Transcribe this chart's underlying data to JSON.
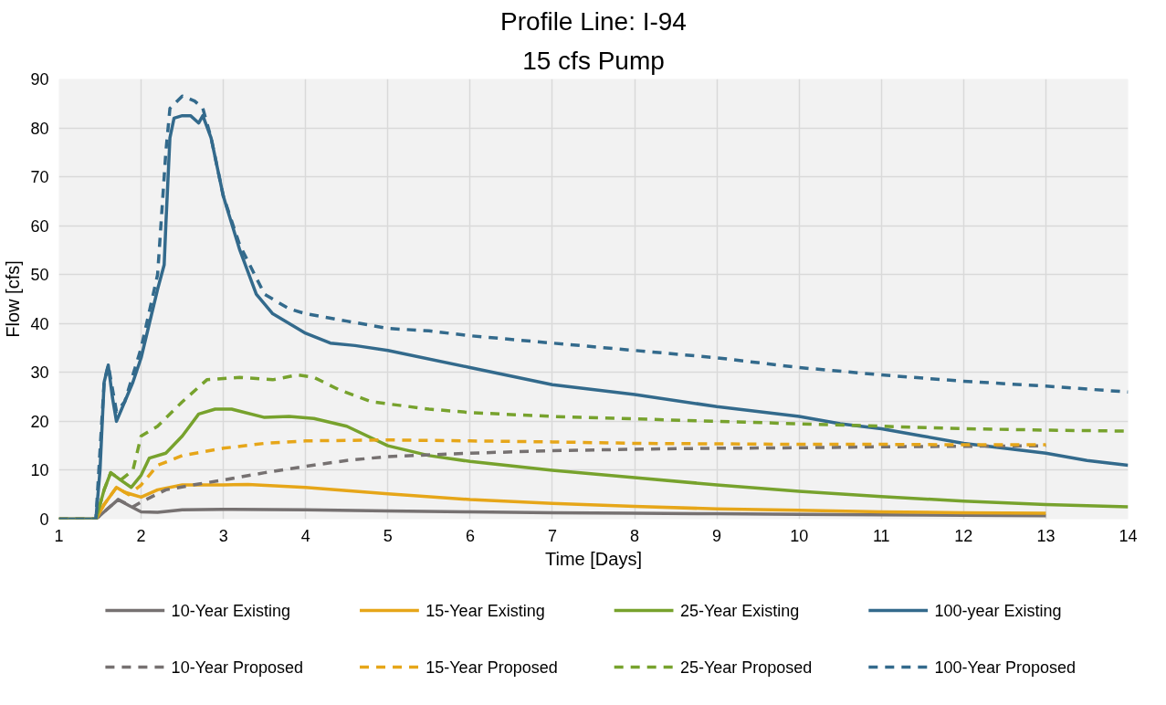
{
  "chart_data": {
    "type": "line",
    "title": "Profile Line: I-94",
    "subtitle": "15 cfs Pump",
    "xlabel": "Time [Days]",
    "ylabel": "Flow [cfs]",
    "xlim": [
      1,
      14
    ],
    "xticks": [
      1,
      2,
      3,
      4,
      5,
      6,
      7,
      8,
      9,
      10,
      11,
      12,
      13,
      14
    ],
    "ylim": [
      0,
      90
    ],
    "yticks": [
      0,
      10,
      20,
      30,
      40,
      50,
      60,
      70,
      80,
      90
    ],
    "grid": true,
    "legend": "bottom",
    "marker": "none",
    "series": [
      {
        "name": "10-Year Existing",
        "color": "#767171",
        "line_style": "solid",
        "x": [
          1,
          1.45,
          1.55,
          1.72,
          1.85,
          2,
          2.2,
          2.5,
          3,
          4,
          5,
          6,
          7,
          8,
          9,
          10,
          11,
          12,
          13
        ],
        "values": [
          0,
          0,
          1.5,
          4,
          2.8,
          1.5,
          1.4,
          1.9,
          2,
          1.9,
          1.7,
          1.5,
          1.3,
          1.2,
          1.1,
          1,
          0.9,
          0.8,
          0.7
        ]
      },
      {
        "name": "15-Year Existing",
        "color": "#e6a619",
        "line_style": "solid",
        "x": [
          1,
          1.45,
          1.55,
          1.7,
          1.8,
          1.9,
          2,
          2.2,
          2.5,
          3,
          3.3,
          4,
          5,
          6,
          7,
          8,
          9,
          10,
          11,
          12,
          13
        ],
        "values": [
          0,
          0,
          3,
          6.5,
          5.5,
          5,
          4.5,
          6,
          7,
          7,
          7.1,
          6.5,
          5.2,
          4,
          3.2,
          2.6,
          2.1,
          1.8,
          1.5,
          1.3,
          1.2
        ]
      },
      {
        "name": "25-Year Existing",
        "color": "#77a22d",
        "line_style": "solid",
        "x": [
          1,
          1.45,
          1.55,
          1.63,
          1.75,
          1.88,
          2,
          2.1,
          2.3,
          2.5,
          2.7,
          2.9,
          3.1,
          3.5,
          3.8,
          4.1,
          4.5,
          5,
          5.5,
          6,
          7,
          8,
          9,
          10,
          11,
          12,
          13,
          14
        ],
        "values": [
          0,
          0,
          6,
          9.5,
          8,
          6.5,
          9,
          12.5,
          13.5,
          17,
          21.5,
          22.5,
          22.5,
          20.8,
          21,
          20.6,
          19,
          15,
          13,
          11.8,
          10,
          8.5,
          7,
          5.7,
          4.6,
          3.7,
          3,
          2.5
        ]
      },
      {
        "name": "100-year Existing",
        "color": "#336a8c",
        "line_style": "solid",
        "x": [
          1,
          1.45,
          1.5,
          1.55,
          1.6,
          1.65,
          1.7,
          1.8,
          1.9,
          2,
          2.1,
          2.2,
          2.28,
          2.3,
          2.35,
          2.4,
          2.5,
          2.6,
          2.7,
          2.75,
          2.85,
          3,
          3.2,
          3.4,
          3.6,
          3.8,
          4,
          4.3,
          4.6,
          5,
          6,
          7,
          8,
          9,
          10,
          10.5,
          11,
          11.5,
          12,
          13,
          13.5,
          14
        ],
        "values": [
          0,
          0,
          10,
          28,
          31.5,
          25,
          20,
          24,
          28,
          33,
          40,
          47,
          52,
          60,
          78,
          82,
          82.5,
          82.5,
          81,
          82.5,
          78,
          66,
          55,
          46,
          42,
          40,
          38,
          36,
          35.5,
          34.5,
          31,
          27.5,
          25.5,
          23,
          21,
          19.5,
          18.5,
          17,
          15.5,
          13.5,
          12,
          11
        ]
      },
      {
        "name": "10-Year Proposed",
        "color": "#767171",
        "line_style": "dashed",
        "x": [
          1,
          1.45,
          1.55,
          1.72,
          1.9,
          2,
          2.3,
          2.7,
          3,
          3.5,
          4,
          4.5,
          5,
          6,
          7,
          8,
          9,
          10,
          11,
          12,
          13
        ],
        "values": [
          0,
          0,
          1.5,
          4,
          2.5,
          3.5,
          6,
          7.2,
          8,
          9.5,
          10.8,
          12,
          12.8,
          13.5,
          14,
          14.3,
          14.5,
          14.6,
          14.8,
          14.9,
          15
        ]
      },
      {
        "name": "15-Year Proposed",
        "color": "#e6a619",
        "line_style": "dashed",
        "x": [
          1,
          1.45,
          1.55,
          1.7,
          1.85,
          2,
          2.2,
          2.5,
          3,
          3.5,
          4,
          5,
          6,
          7,
          8,
          9,
          10,
          11,
          12,
          13
        ],
        "values": [
          0,
          0,
          3,
          6.5,
          5,
          7,
          11,
          13,
          14.5,
          15.5,
          16,
          16.2,
          16,
          15.8,
          15.5,
          15.4,
          15.3,
          15.3,
          15.2,
          15.2
        ]
      },
      {
        "name": "25-Year Proposed",
        "color": "#77a22d",
        "line_style": "dashed",
        "x": [
          1,
          1.45,
          1.55,
          1.63,
          1.75,
          1.9,
          2,
          2.2,
          2.5,
          2.8,
          3.2,
          3.6,
          3.9,
          4.1,
          4.4,
          4.8,
          5.5,
          6,
          7,
          8,
          9,
          10,
          11,
          12,
          13,
          14
        ],
        "values": [
          0,
          0,
          6,
          9.5,
          8,
          10,
          17,
          19,
          24,
          28.5,
          29,
          28.5,
          29.5,
          29,
          26.5,
          24,
          22.5,
          21.8,
          21,
          20.5,
          20,
          19.5,
          19,
          18.5,
          18.2,
          18
        ]
      },
      {
        "name": "100-Year Proposed",
        "color": "#336a8c",
        "line_style": "dashed",
        "x": [
          1,
          1.45,
          1.55,
          1.6,
          1.7,
          1.8,
          2,
          2.2,
          2.3,
          2.35,
          2.5,
          2.65,
          2.75,
          2.85,
          3,
          3.2,
          3.5,
          3.8,
          4,
          4.5,
          5,
          5.5,
          6,
          7,
          8,
          9,
          10,
          11,
          12,
          13,
          14
        ],
        "values": [
          0,
          0,
          28,
          31.5,
          22,
          24,
          35,
          50,
          75,
          84,
          86.5,
          85.5,
          84,
          78,
          66,
          56,
          46,
          43,
          42,
          40.5,
          39,
          38.5,
          37.5,
          36,
          34.5,
          33,
          31,
          29.5,
          28.2,
          27.2,
          26
        ]
      }
    ]
  }
}
